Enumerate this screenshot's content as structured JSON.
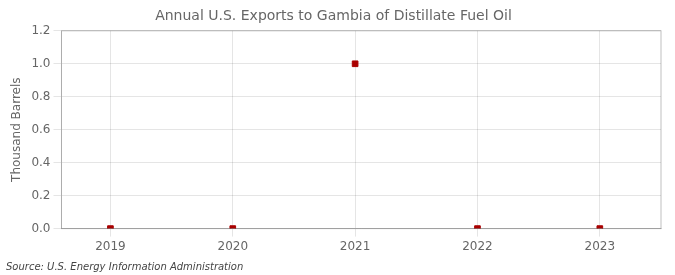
{
  "chart_data": {
    "type": "scatter",
    "title": "Annual U.S. Exports to Gambia of Distillate Fuel Oil",
    "ylabel": "Thousand Barrels",
    "annotation": "Source: U.S. Energy Information Administration",
    "x": [
      2019,
      2020,
      2021,
      2022,
      2023
    ],
    "values": [
      0.0,
      0.0,
      1.0,
      0.0,
      0.0
    ],
    "color": "#aa0000",
    "marker": "square",
    "xlim": [
      2018.6,
      2023.5
    ],
    "xticks": [
      2019,
      2020,
      2021,
      2022,
      2023
    ],
    "ylim": [
      0.0,
      1.2
    ],
    "yticks": [
      {
        "value": 0.0,
        "label": "0.0"
      },
      0.2,
      0.4,
      0.6,
      0.8,
      {
        "value": 1.0,
        "label": "1.0"
      },
      1.2
    ],
    "grid": true
  }
}
